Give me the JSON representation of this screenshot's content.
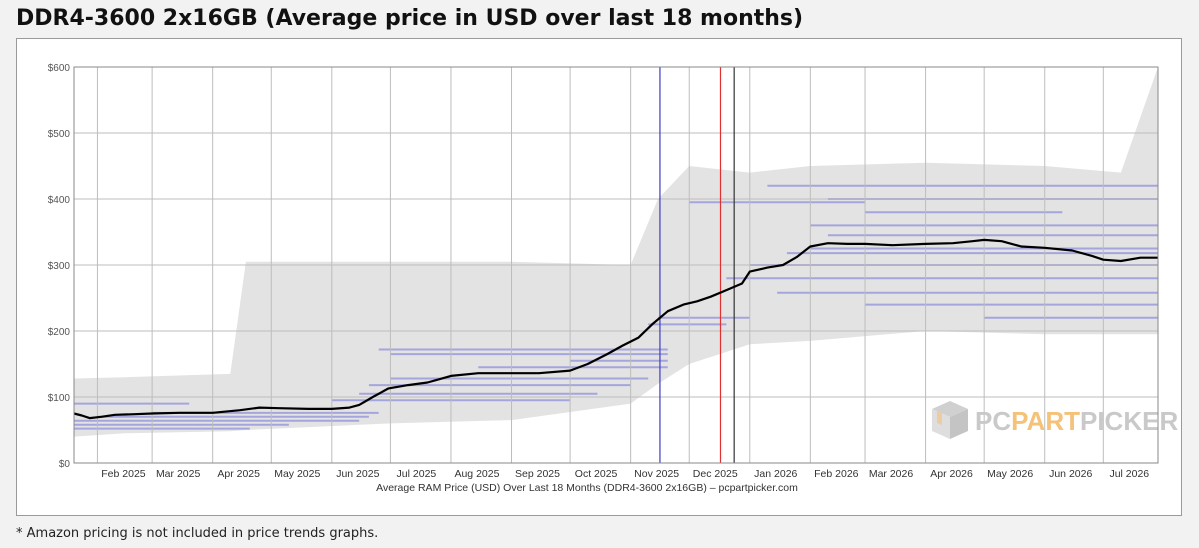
{
  "title": "DDR4-3600 2x16GB (Average price in USD over last 18 months)",
  "footnote": "* Amazon pricing is not included in price trends graphs.",
  "watermark": {
    "part1": "PC",
    "part2": "PART",
    "part3": "PICKER",
    "icon": "pcpartpicker-box-icon"
  },
  "colors": {
    "avg_line": "#000000",
    "offers": "#5b5bd6",
    "range_band": "#d9d9d9",
    "grid": "#bdbdbd",
    "marker_blue": "#3c3cc8",
    "marker_red": "#e03030",
    "marker_black": "#333333",
    "wm_grey": "#c9c9c9",
    "wm_orange": "#f5c27a"
  },
  "chart_data": {
    "type": "line",
    "xlabel": "Average RAM Price (USD) Over Last 18 Months (DDR4-3600 2x16GB) – pcpartpicker.com",
    "ylabel": "",
    "ylim": [
      0,
      600
    ],
    "xlim": [
      "2025-01-20",
      "2026-07-29"
    ],
    "y_ticks": [
      "$0",
      "$100",
      "$200",
      "$300",
      "$400",
      "$500",
      "$600"
    ],
    "x_ticks": [
      {
        "date": "2025-02-01",
        "label": "Feb 2025"
      },
      {
        "date": "2025-03-01",
        "label": "Mar 2025"
      },
      {
        "date": "2025-04-01",
        "label": "Apr 2025"
      },
      {
        "date": "2025-05-01",
        "label": "May 2025"
      },
      {
        "date": "2025-06-01",
        "label": "Jun 2025"
      },
      {
        "date": "2025-07-01",
        "label": "Jul 2025"
      },
      {
        "date": "2025-08-01",
        "label": "Aug 2025"
      },
      {
        "date": "2025-09-01",
        "label": "Sep 2025"
      },
      {
        "date": "2025-10-01",
        "label": "Oct 2025"
      },
      {
        "date": "2025-11-01",
        "label": "Nov 2025"
      },
      {
        "date": "2025-12-01",
        "label": "Dec 2025"
      },
      {
        "date": "2026-01-01",
        "label": "Jan 2026"
      },
      {
        "date": "2026-02-01",
        "label": "Feb 2026"
      },
      {
        "date": "2026-03-01",
        "label": "Mar 2026"
      },
      {
        "date": "2026-04-01",
        "label": "Apr 2026"
      },
      {
        "date": "2026-05-01",
        "label": "May 2026"
      },
      {
        "date": "2026-06-01",
        "label": "Jun 2026"
      },
      {
        "date": "2026-07-01",
        "label": "Jul 2026"
      }
    ],
    "grid": true,
    "series": [
      {
        "name": "",
        "points": [
          [
            "2025-01-20",
            75
          ],
          [
            "2025-01-24",
            72
          ],
          [
            "2025-01-28",
            68
          ],
          [
            "2025-02-03",
            70
          ],
          [
            "2025-02-10",
            73
          ],
          [
            "2025-02-20",
            74
          ],
          [
            "2025-03-01",
            75
          ],
          [
            "2025-03-15",
            76
          ],
          [
            "2025-04-01",
            76
          ],
          [
            "2025-04-15",
            80
          ],
          [
            "2025-04-25",
            84
          ],
          [
            "2025-05-05",
            83
          ],
          [
            "2025-05-20",
            82
          ],
          [
            "2025-06-01",
            82
          ],
          [
            "2025-06-10",
            84
          ],
          [
            "2025-06-15",
            88
          ],
          [
            "2025-06-22",
            100
          ],
          [
            "2025-06-30",
            113
          ],
          [
            "2025-07-10",
            118
          ],
          [
            "2025-07-20",
            122
          ],
          [
            "2025-08-01",
            132
          ],
          [
            "2025-08-15",
            136
          ],
          [
            "2025-09-01",
            136
          ],
          [
            "2025-09-15",
            136
          ],
          [
            "2025-10-01",
            140
          ],
          [
            "2025-10-10",
            150
          ],
          [
            "2025-10-20",
            165
          ],
          [
            "2025-10-28",
            178
          ],
          [
            "2025-11-05",
            190
          ],
          [
            "2025-11-12",
            210
          ],
          [
            "2025-11-20",
            230
          ],
          [
            "2025-11-28",
            240
          ],
          [
            "2025-12-05",
            245
          ],
          [
            "2025-12-12",
            252
          ],
          [
            "2025-12-20",
            262
          ],
          [
            "2025-12-28",
            272
          ],
          [
            "2026-01-01",
            290
          ],
          [
            "2026-01-10",
            296
          ],
          [
            "2026-01-18",
            300
          ],
          [
            "2026-01-25",
            312
          ],
          [
            "2026-02-01",
            328
          ],
          [
            "2026-02-10",
            333
          ],
          [
            "2026-02-20",
            332
          ],
          [
            "2026-03-01",
            332
          ],
          [
            "2026-03-15",
            330
          ],
          [
            "2026-04-01",
            332
          ],
          [
            "2026-04-15",
            333
          ],
          [
            "2026-04-25",
            336
          ],
          [
            "2026-05-01",
            338
          ],
          [
            "2026-05-10",
            336
          ],
          [
            "2026-05-20",
            328
          ],
          [
            "2026-06-01",
            326
          ],
          [
            "2026-06-15",
            322
          ],
          [
            "2026-06-25",
            314
          ],
          [
            "2026-07-01",
            308
          ],
          [
            "2026-07-10",
            306
          ],
          [
            "2026-07-20",
            311
          ],
          [
            "2026-07-29",
            311
          ]
        ]
      }
    ],
    "range_band": [
      [
        "2025-01-20",
        40,
        128
      ],
      [
        "2025-02-15",
        45,
        130
      ],
      [
        "2025-04-10",
        48,
        135
      ],
      [
        "2025-04-18",
        50,
        305
      ],
      [
        "2025-07-01",
        60,
        305
      ],
      [
        "2025-09-01",
        65,
        305
      ],
      [
        "2025-11-01",
        90,
        300
      ],
      [
        "2025-11-15",
        120,
        400
      ],
      [
        "2025-12-01",
        150,
        450
      ],
      [
        "2026-01-01",
        180,
        440
      ],
      [
        "2026-02-01",
        185,
        450
      ],
      [
        "2026-04-01",
        200,
        455
      ],
      [
        "2026-06-01",
        195,
        450
      ],
      [
        "2026-07-10",
        195,
        440
      ],
      [
        "2026-07-29",
        195,
        600
      ]
    ],
    "offer_levels": [
      [
        "2025-01-20",
        "2025-04-20",
        52
      ],
      [
        "2025-01-20",
        "2025-05-10",
        58
      ],
      [
        "2025-01-20",
        "2025-06-15",
        64
      ],
      [
        "2025-02-01",
        "2025-06-20",
        70
      ],
      [
        "2025-01-20",
        "2025-03-20",
        90
      ],
      [
        "2025-03-01",
        "2025-06-25",
        76
      ],
      [
        "2025-06-01",
        "2025-10-01",
        95
      ],
      [
        "2025-06-15",
        "2025-10-15",
        105
      ],
      [
        "2025-06-20",
        "2025-11-01",
        118
      ],
      [
        "2025-07-01",
        "2025-11-10",
        128
      ],
      [
        "2025-06-25",
        "2025-11-20",
        172
      ],
      [
        "2025-07-01",
        "2025-11-20",
        165
      ],
      [
        "2025-08-15",
        "2025-11-20",
        145
      ],
      [
        "2025-10-01",
        "2025-11-20",
        155
      ],
      [
        "2025-11-15",
        "2026-01-01",
        220
      ],
      [
        "2025-11-10",
        "2025-12-20",
        210
      ],
      [
        "2025-12-20",
        "2026-07-29",
        280
      ],
      [
        "2026-01-01",
        "2026-07-29",
        300
      ],
      [
        "2026-01-20",
        "2026-07-29",
        318
      ],
      [
        "2026-02-01",
        "2026-07-29",
        325
      ],
      [
        "2026-02-10",
        "2026-07-29",
        345
      ],
      [
        "2026-02-01",
        "2026-07-29",
        360
      ],
      [
        "2026-01-15",
        "2026-07-29",
        258
      ],
      [
        "2026-03-01",
        "2026-07-29",
        240
      ],
      [
        "2026-02-10",
        "2026-07-29",
        400
      ],
      [
        "2026-01-10",
        "2026-07-29",
        420
      ],
      [
        "2026-03-01",
        "2026-06-10",
        380
      ],
      [
        "2025-12-01",
        "2026-03-01",
        395
      ],
      [
        "2026-05-01",
        "2026-07-29",
        220
      ]
    ],
    "markers": [
      {
        "date": "2025-11-16",
        "color": "blue"
      },
      {
        "date": "2025-12-17",
        "color": "red"
      },
      {
        "date": "2025-12-24",
        "color": "black"
      }
    ]
  }
}
